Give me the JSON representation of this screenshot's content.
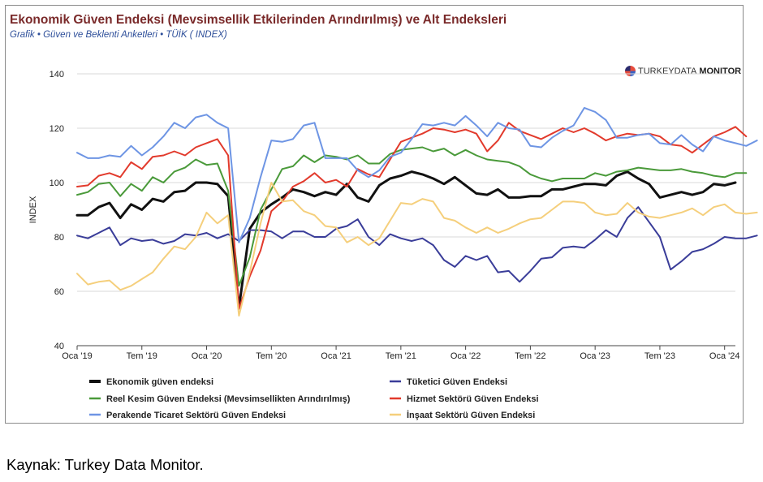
{
  "header": {
    "title": "Ekonomik Güven Endeksi (Mevsimsellik Etkilerinden Arındırılmış) ve Alt Endeksleri",
    "subtitle": "Grafik • Güven ve Beklenti Anketleri • TÜİK ( INDEX)"
  },
  "logo": {
    "text_light": "TURKEYDATA",
    "text_bold": "MONITOR"
  },
  "caption": "Kaynak: Turkey Data Monitor.",
  "chart_data": {
    "type": "line",
    "ylabel": "INDEX",
    "ylim": [
      40,
      140
    ],
    "yticks": [
      40,
      60,
      80,
      100,
      120,
      140
    ],
    "x_start": "2019-01",
    "xticks": [
      {
        "i": 0,
        "label": "Oca '19"
      },
      {
        "i": 6,
        "label": "Tem '19"
      },
      {
        "i": 12,
        "label": "Oca '20"
      },
      {
        "i": 18,
        "label": "Tem '20"
      },
      {
        "i": 24,
        "label": "Oca '21"
      },
      {
        "i": 30,
        "label": "Tem '21"
      },
      {
        "i": 36,
        "label": "Oca '22"
      },
      {
        "i": 42,
        "label": "Tem '22"
      },
      {
        "i": 48,
        "label": "Oca '23"
      },
      {
        "i": 54,
        "label": "Tem '23"
      },
      {
        "i": 60,
        "label": "Oca '24"
      }
    ],
    "grid": "horizontal",
    "legend_position": "bottom",
    "series": [
      {
        "name": "Ekonomik güven endeksi",
        "color": "#111111",
        "width": 3,
        "values": [
          88,
          88,
          91,
          92.5,
          87,
          92,
          90,
          94,
          93,
          96.5,
          97,
          100,
          100,
          99.5,
          95,
          54,
          83,
          89,
          92,
          94.5,
          97.5,
          96.5,
          95,
          96.5,
          95.5,
          99.5,
          94.5,
          93,
          99,
          101.5,
          102.5,
          104,
          103,
          101.5,
          99.5,
          102,
          99,
          96,
          95.5,
          97.5,
          94.5,
          94.5,
          95,
          95,
          97.5,
          97.5,
          98.5,
          99.5,
          99.5,
          99,
          102.5,
          104,
          101.5,
          99.5,
          94.5,
          95.5,
          96.5,
          95.5,
          96.5,
          99.5,
          99,
          100
        ]
      },
      {
        "name": "Tüketici Güven Endeksi",
        "color": "#3a3d99",
        "width": 2,
        "values": [
          80.5,
          79.5,
          81.5,
          83.5,
          77,
          79.5,
          78.5,
          79,
          77.5,
          78.5,
          81,
          80.5,
          81.5,
          79.5,
          81,
          78.5,
          82.5,
          82.5,
          82,
          79.5,
          82,
          82,
          80,
          80,
          83,
          84,
          86.5,
          80,
          77,
          81,
          79.5,
          78.5,
          79.5,
          77,
          71.5,
          69,
          73,
          71.5,
          73,
          67,
          67.5,
          63.5,
          67.5,
          72,
          72.5,
          76,
          76.5,
          76,
          79,
          82.5,
          80,
          87,
          91,
          85.5,
          80,
          68,
          71,
          74.5,
          75.5,
          77.5,
          80,
          79.5,
          79.5,
          80.5
        ]
      },
      {
        "name": "Reel Kesim Güven Endeksi (Mevsimsellikten Arındırılmış)",
        "color": "#4a9a3a",
        "width": 2,
        "values": [
          95.5,
          96.5,
          99.5,
          100,
          95,
          99.5,
          97,
          102,
          100,
          104,
          105.5,
          108.5,
          106.5,
          107,
          97,
          62,
          72.5,
          90,
          97.5,
          105,
          106,
          110,
          107.5,
          110,
          109.5,
          108.5,
          110,
          107,
          107,
          110.5,
          112,
          112.5,
          113,
          111.5,
          112.5,
          110,
          112,
          110,
          108.5,
          108,
          107.5,
          106,
          103,
          101.5,
          100.5,
          101.5,
          101.5,
          101.5,
          103.5,
          102.5,
          104,
          104.5,
          105.5,
          105,
          104.5,
          104.5,
          105,
          104,
          103.5,
          102.5,
          102,
          103.5,
          103.5
        ]
      },
      {
        "name": "Hizmet Sektörü Güven Endeksi",
        "color": "#e23a2c",
        "width": 2,
        "values": [
          98.5,
          99,
          102.5,
          103.5,
          102,
          107.5,
          105,
          109.5,
          110,
          111.5,
          110,
          113,
          114.5,
          116,
          110,
          53.5,
          65.5,
          75,
          89.5,
          93,
          98.5,
          100.5,
          103.5,
          100,
          101,
          98.5,
          105,
          103,
          102,
          108.5,
          115,
          116.5,
          118,
          120,
          119.5,
          118.5,
          119.5,
          118,
          111.5,
          115.5,
          122,
          119,
          117.5,
          116,
          118,
          120,
          118.5,
          120,
          118,
          115.5,
          117,
          118,
          117.5,
          118,
          117,
          114,
          113.5,
          111,
          114,
          117,
          118.5,
          120.5,
          117
        ]
      },
      {
        "name": "Perakende Ticaret Sektörü Güven Endeksi",
        "color": "#6e95e4",
        "width": 2,
        "values": [
          111,
          109,
          109,
          110,
          109.5,
          113.5,
          110,
          113,
          117,
          122,
          120,
          124,
          125,
          122,
          120,
          78,
          87,
          102,
          115.5,
          115,
          116,
          121,
          122,
          109,
          109,
          109,
          104.5,
          102,
          104.5,
          109.5,
          111,
          116,
          121.5,
          121,
          122,
          121,
          124.5,
          121,
          117,
          122,
          120,
          119.5,
          113.5,
          113,
          116.5,
          119,
          121,
          127.5,
          126,
          123,
          116.5,
          116.5,
          117.5,
          118,
          114.5,
          114,
          117.5,
          114,
          111.5,
          117,
          115.5,
          114.5,
          113.5,
          115.5
        ]
      },
      {
        "name": "İnşaat Sektörü Güven Endeksi",
        "color": "#f5cf7c",
        "width": 2,
        "values": [
          66.5,
          62.5,
          63.5,
          64,
          60.5,
          62,
          64.5,
          67,
          72,
          76.5,
          75.5,
          80,
          89,
          85,
          88,
          51,
          67,
          85,
          100,
          93,
          93.5,
          89.5,
          88,
          84,
          83.5,
          78,
          80,
          77,
          79.5,
          86,
          92.5,
          92,
          94,
          93,
          87,
          86,
          83.5,
          81.5,
          83.5,
          81.5,
          83,
          85,
          86.5,
          87,
          90,
          93,
          93,
          92.5,
          89,
          88,
          88.5,
          92.5,
          89,
          87.5,
          87,
          88,
          89,
          90.5,
          88,
          91,
          92,
          89,
          88.5,
          89
        ]
      }
    ]
  }
}
